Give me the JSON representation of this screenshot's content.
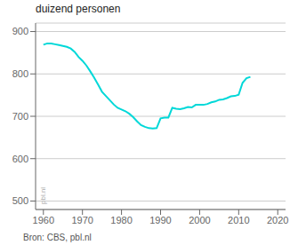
{
  "chart_data": {
    "type": "line",
    "title": "duizend personen",
    "annotations": [
      "pbl.nl",
      "Bron: CBS, pbl.nl"
    ],
    "color": "#00d8d8",
    "grid": true,
    "xlim": [
      1958,
      2022
    ],
    "xticks": [
      1960,
      1970,
      1980,
      1990,
      2000,
      2010,
      2020
    ],
    "ylim": [
      480,
      920
    ],
    "yticks": [
      500,
      600,
      700,
      800,
      900
    ],
    "x": [
      1960,
      1961,
      1962,
      1963,
      1964,
      1965,
      1966,
      1967,
      1968,
      1969,
      1970,
      1971,
      1972,
      1973,
      1974,
      1975,
      1976,
      1977,
      1978,
      1979,
      1980,
      1981,
      1982,
      1983,
      1984,
      1985,
      1986,
      1987,
      1988,
      1989,
      1990,
      1991,
      1992,
      1993,
      1994,
      1995,
      1996,
      1997,
      1998,
      1999,
      2000,
      2001,
      2002,
      2003,
      2004,
      2005,
      2006,
      2007,
      2008,
      2009,
      2010,
      2011,
      2012,
      2013
    ],
    "values": [
      869,
      872,
      872,
      870,
      868,
      866,
      864,
      860,
      852,
      840,
      831,
      820,
      806,
      791,
      775,
      758,
      748,
      738,
      728,
      720,
      716,
      712,
      706,
      698,
      688,
      679,
      675,
      672,
      671,
      672,
      695,
      697,
      697,
      720,
      718,
      717,
      719,
      722,
      721,
      727,
      727,
      727,
      729,
      733,
      735,
      739,
      740,
      743,
      747,
      748,
      751,
      779,
      790,
      793
    ]
  }
}
